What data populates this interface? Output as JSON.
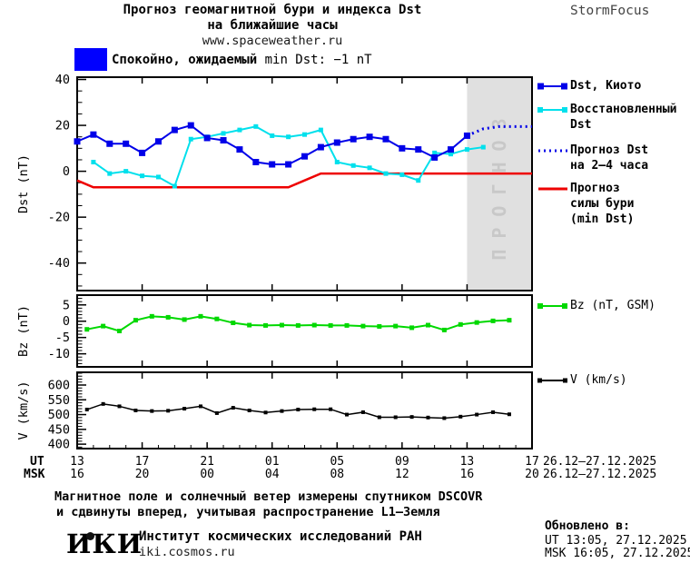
{
  "header": {
    "title1": "Прогноз геомагнитной бури и индекса Dst",
    "title2": "на ближайшие часы",
    "site": "www.spaceweather.ru",
    "brand": "StormFocus",
    "alert_prefix": "Спокойно, ожидаемый",
    "alert_suffix": "min Dst: −1 nT",
    "alert_color": "#0000ff"
  },
  "axis": {
    "ut_label": "UT",
    "msk_label": "MSK",
    "ut_ticks": [
      "13",
      "17",
      "21",
      "01",
      "05",
      "09",
      "13",
      "17"
    ],
    "msk_ticks": [
      "16",
      "20",
      "00",
      "04",
      "08",
      "12",
      "16",
      "20"
    ],
    "date_ut": "26.12–27.12.2025",
    "date_msk": "26.12–27.12.2025"
  },
  "legend": {
    "main": [
      {
        "lines": [
          "Dst, Киото"
        ],
        "color": "#0000e8",
        "style": "squares",
        "bold": true,
        "marker": 7
      },
      {
        "lines": [
          "Восстановленный",
          "Dst"
        ],
        "color": "#00e0ec",
        "style": "squares",
        "bold": true,
        "marker": 6
      },
      {
        "lines": [
          "Прогноз Dst",
          "на 2–4 часа"
        ],
        "color": "#0000e8",
        "style": "dotted",
        "bold": true,
        "marker": 0
      },
      {
        "lines": [
          "Прогноз",
          "силы бури",
          "(min Dst)"
        ],
        "color": "#ee0000",
        "style": "solid",
        "bold": true,
        "marker": 0
      }
    ],
    "bz": {
      "lines": [
        "Bz (nT, GSM)"
      ],
      "color": "#00d800",
      "style": "squares",
      "bold": false,
      "marker": 6
    },
    "v": {
      "lines": [
        "V (km/s)"
      ],
      "color": "#000000",
      "style": "squares",
      "bold": false,
      "marker": 5
    }
  },
  "chart_data": [
    {
      "type": "line",
      "panel": "dst",
      "ylabel": "Dst (nT)",
      "ylim": [
        -52,
        41
      ],
      "yticks": [
        40,
        20,
        0,
        -20,
        -40
      ],
      "minor_step": 5,
      "x_hours_total": 28,
      "x_major_every": 4,
      "forecast_region": {
        "start_hour": 24,
        "end_hour": 28,
        "label": "ПРОГНОЗ",
        "fill": "#e0e0e0",
        "label_color": "#c8c8c8"
      },
      "series": [
        {
          "name": "Прогноз силы бури (min Dst)",
          "color": "#ee0000",
          "width": 2.5,
          "marker": 0,
          "start_hour": 0,
          "values": [
            -4,
            -7,
            -7,
            -7,
            -7,
            -7,
            -7,
            -7,
            -7,
            -7,
            -7,
            -7,
            -7,
            -7,
            -4,
            -1,
            -1,
            -1,
            -1,
            -1,
            -1,
            -1,
            -1,
            -1,
            -1,
            -1,
            -1,
            -1,
            -1
          ]
        },
        {
          "name": "Восстановленный Dst",
          "color": "#00e0ec",
          "width": 2,
          "marker": 5,
          "start_hour": 1,
          "values": [
            4,
            -1,
            0,
            -2,
            -2.5,
            -6.5,
            14,
            15,
            16.5,
            18,
            19.5,
            15.5,
            15,
            16,
            18,
            4,
            2.5,
            1.5,
            -1,
            -1.5,
            -4,
            8,
            7.5,
            9.5,
            10.5
          ]
        },
        {
          "name": "Dst, Киото",
          "color": "#0000e8",
          "width": 2,
          "marker": 7,
          "start_hour": 0,
          "values": [
            13,
            16,
            12,
            12,
            8,
            13,
            18,
            20,
            14.5,
            13.5,
            9.5,
            4,
            3,
            3,
            6.5,
            10.5,
            12.5,
            14,
            15,
            14,
            10,
            9.5,
            6,
            9.5,
            15.5
          ]
        },
        {
          "name": "Прогноз Dst на 2-4 часа",
          "color": "#0000e8",
          "width": 3,
          "marker": 0,
          "dash": "2 4",
          "start_hour": 24,
          "values": [
            15.5,
            18.5,
            19.5,
            19.5,
            19.5
          ]
        }
      ]
    },
    {
      "type": "line",
      "panel": "bz",
      "ylabel": "Bz (nT)",
      "ylim": [
        -14,
        8
      ],
      "yticks": [
        5,
        0,
        -5,
        -10
      ],
      "minor_step": 1,
      "series": [
        {
          "name": "Bz (nT, GSM)",
          "color": "#00d800",
          "width": 2,
          "marker": 5,
          "start_hour": 0.6,
          "values": [
            -2.5,
            -1.5,
            -3,
            0.3,
            1.5,
            1.2,
            0.5,
            1.5,
            0.7,
            -0.5,
            -1.2,
            -1.3,
            -1.2,
            -1.3,
            -1.2,
            -1.3,
            -1.3,
            -1.5,
            -1.6,
            -1.5,
            -2,
            -1.2,
            -2.7,
            -1,
            -0.4,
            0.1,
            0.3
          ]
        }
      ]
    },
    {
      "type": "line",
      "panel": "v",
      "ylabel": "V (km/s)",
      "ylim": [
        385,
        643
      ],
      "yticks": [
        600,
        550,
        500,
        450,
        400
      ],
      "minor_step": 10,
      "series": [
        {
          "name": "V (km/s)",
          "color": "#000000",
          "width": 1.5,
          "marker": 4,
          "start_hour": 0.6,
          "values": [
            517,
            536,
            528,
            514,
            512,
            513,
            520,
            528,
            505,
            523,
            514,
            507,
            512,
            517,
            518,
            518,
            500,
            508,
            491,
            491,
            492,
            490,
            488,
            493,
            500,
            508,
            501
          ]
        }
      ]
    }
  ],
  "footer": {
    "note1": "Магнитное поле и солнечный ветер измерены спутником DSCOVR",
    "note2": "и сдвинуты вперед, учитывая распространение L1–Земля",
    "updated_title": "Обновлено в:",
    "updated_ut": "UT  13:05, 27.12.2025",
    "updated_msk": "MSK 16:05, 27.12.2025",
    "logo": "ИКИ",
    "institute": "Институт космических исследований РАН",
    "site": "iki.cosmos.ru"
  }
}
